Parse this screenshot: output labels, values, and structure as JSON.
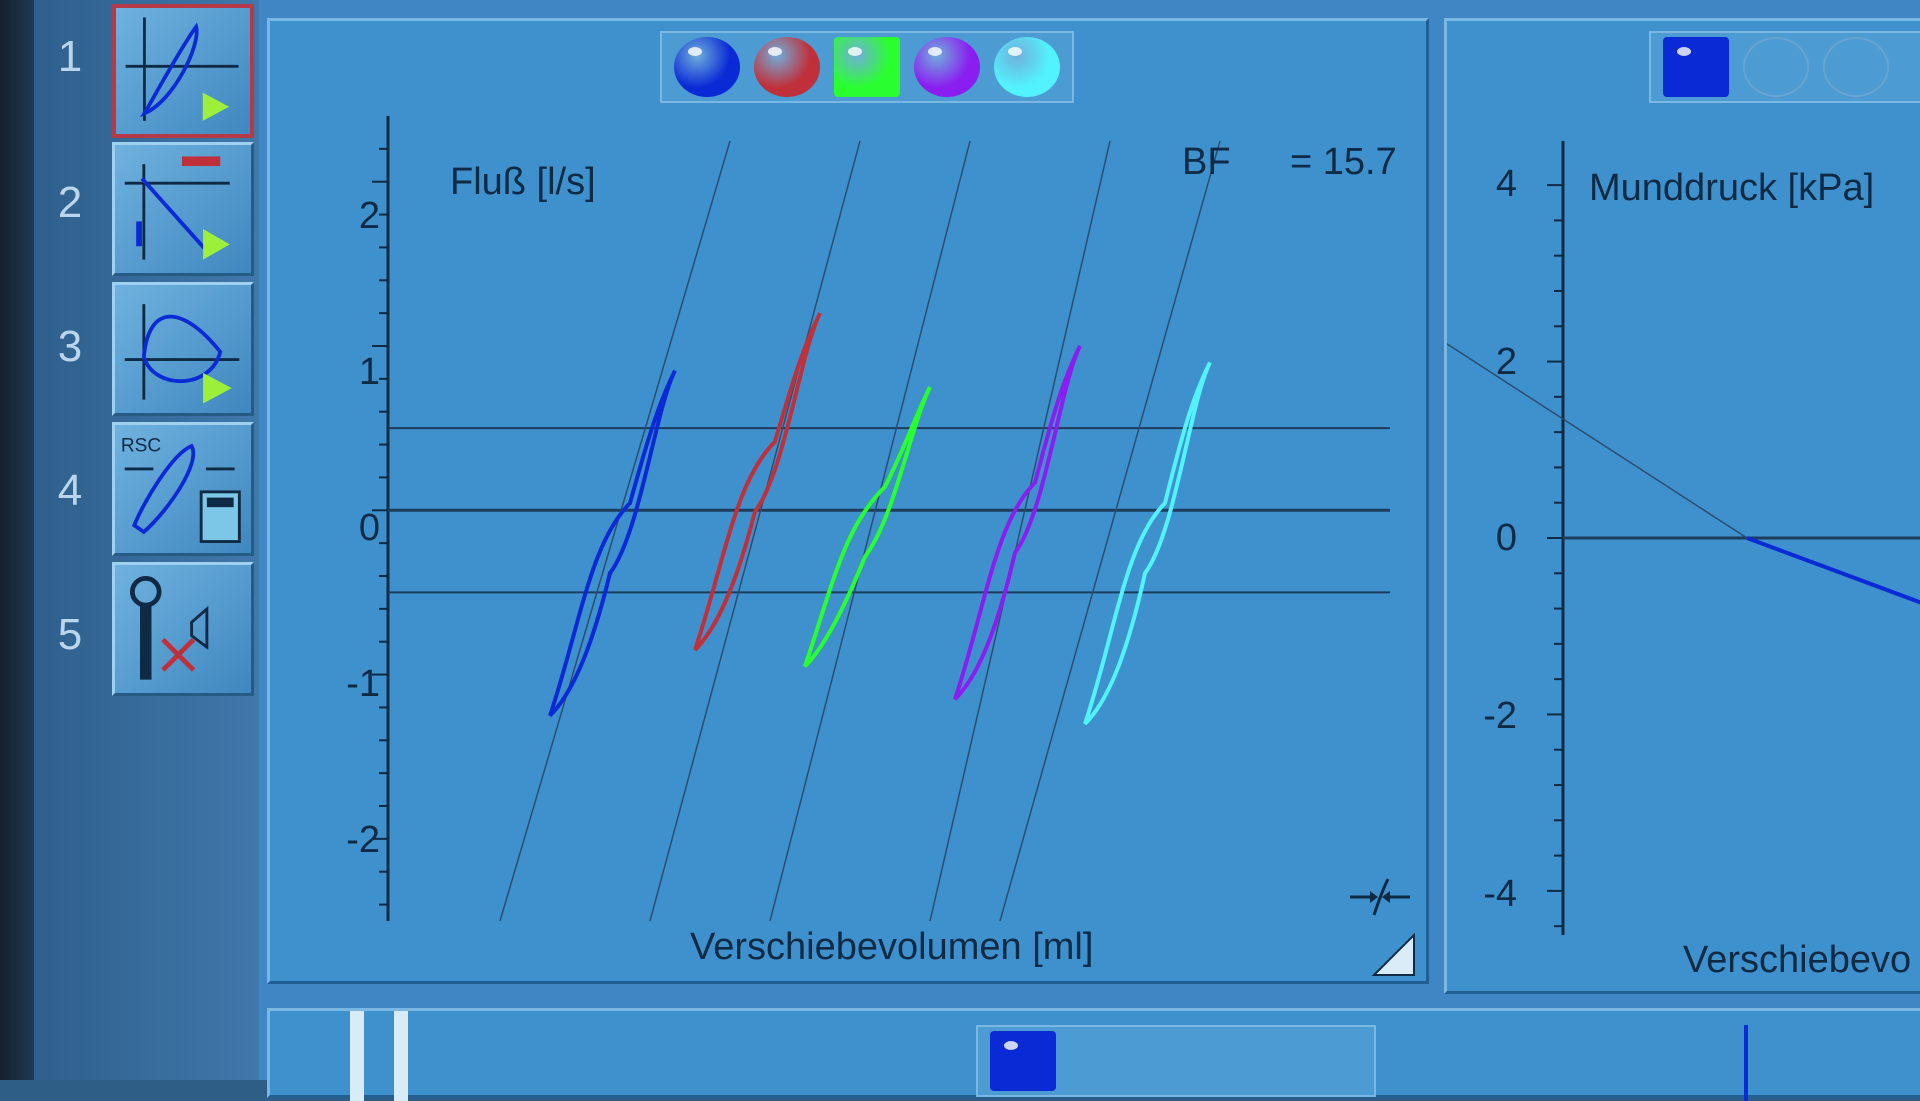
{
  "toolbar": {
    "tools": [
      {
        "number": "1",
        "name": "flow-volume-loop-tool",
        "active": true
      },
      {
        "number": "2",
        "name": "resistance-tool",
        "active": false
      },
      {
        "number": "3",
        "name": "pressure-loop-tool",
        "active": false
      },
      {
        "number": "4",
        "name": "rsc-calculator-tool",
        "active": false
      },
      {
        "number": "5",
        "name": "occlusion-tool",
        "active": false
      }
    ]
  },
  "loop_panel": {
    "series_colors": [
      "#0a2ad6",
      "#c0303a",
      "#29ff2f",
      "#8a1ef0",
      "#52f3ff"
    ],
    "selected_index": 2,
    "ylabel": "Fluß [l/s]",
    "xlabel": "Verschiebevolumen [ml]",
    "bf_label": "BF",
    "bf_value": "= 15.7",
    "y_ticks": [
      "2",
      "1",
      "0",
      "-1",
      "-2"
    ],
    "expand_icon": "collapse-arrows-icon"
  },
  "pressure_panel": {
    "series_colors": [
      "#0a2ad6"
    ],
    "ylabel": "Munddruck [kPa]",
    "xlabel": "Verschiebevo",
    "y_ticks": [
      "4",
      "2",
      "0",
      "-2",
      "-4"
    ]
  },
  "bottom_panel": {
    "series_colors": [
      "#0a2ad6"
    ]
  },
  "chart_data": [
    {
      "type": "line",
      "ylabel": "Fluß [l/s]",
      "xlabel": "Verschiebevolumen [ml]",
      "ylim": [
        -2.5,
        2.4
      ],
      "annotations": [
        "BF = 15.7"
      ],
      "series": [
        {
          "color": "#0a2ad6",
          "y_range": [
            -1.25,
            0.85
          ]
        },
        {
          "color": "#c0303a",
          "y_range": [
            -0.85,
            1.2
          ]
        },
        {
          "color": "#29ff2f",
          "y_range": [
            -0.95,
            0.75
          ]
        },
        {
          "color": "#8a1ef0",
          "y_range": [
            -1.15,
            1.0
          ]
        },
        {
          "color": "#52f3ff",
          "y_range": [
            -1.3,
            0.9
          ]
        }
      ],
      "horizontal_lines": [
        0.5,
        0,
        -0.5
      ]
    },
    {
      "type": "line",
      "ylabel": "Munddruck [kPa]",
      "xlabel": "Verschiebevo",
      "ylim": [
        -4.5,
        4.5
      ],
      "series": [
        {
          "color": "#0a2ad6",
          "y_end": -0.8
        }
      ]
    }
  ]
}
